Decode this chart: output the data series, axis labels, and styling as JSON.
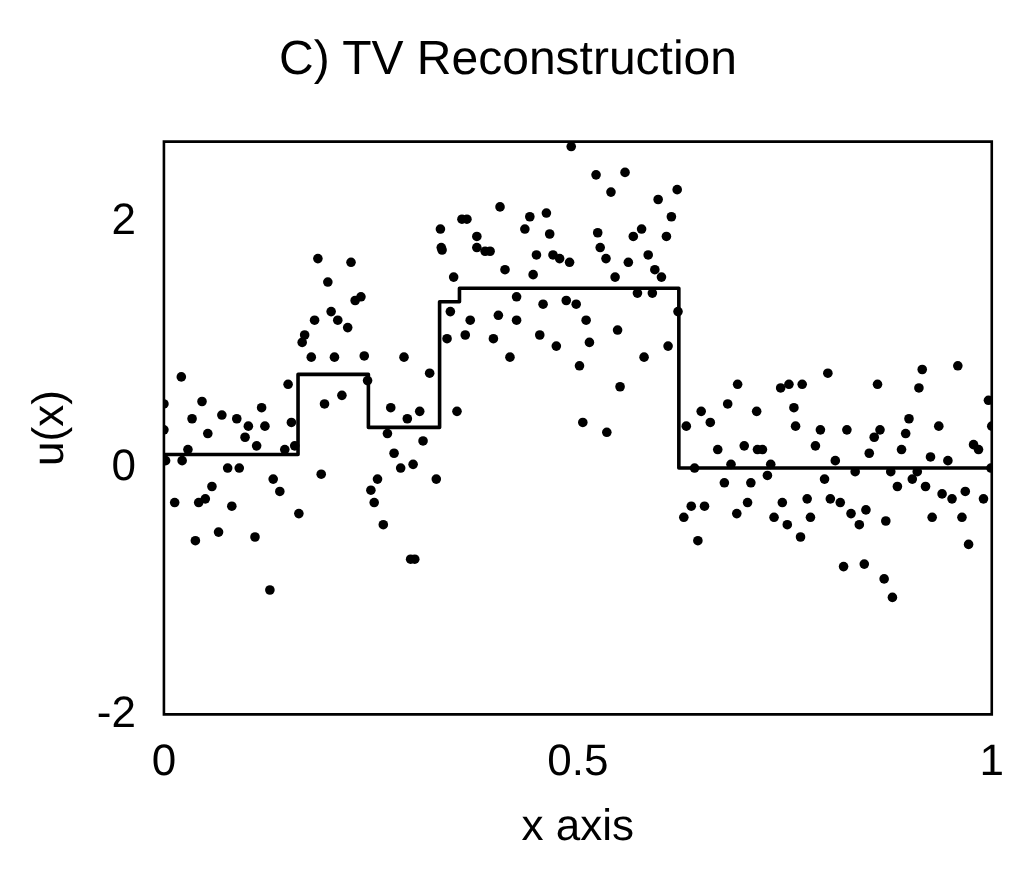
{
  "chart_data": {
    "type": "scatter",
    "title": "C) TV Reconstruction",
    "xlabel": "x axis",
    "ylabel": "u(x)",
    "xlim": [
      0,
      1
    ],
    "xticks": [
      0,
      0.5,
      1
    ],
    "ylim": [
      -2,
      2.65
    ],
    "yticks": [
      -2,
      0,
      2
    ],
    "grid": false,
    "legend": false,
    "marker": "circle",
    "series": [
      {
        "color": "#000000",
        "x": [
          0.0,
          0.0,
          0.002,
          0.013,
          0.021,
          0.022,
          0.029,
          0.034,
          0.038,
          0.042,
          0.046,
          0.05,
          0.053,
          0.058,
          0.066,
          0.07,
          0.077,
          0.082,
          0.088,
          0.091,
          0.098,
          0.102,
          0.11,
          0.112,
          0.118,
          0.122,
          0.128,
          0.132,
          0.14,
          0.146,
          0.15,
          0.154,
          0.158,
          0.163,
          0.167,
          0.17,
          0.178,
          0.182,
          0.186,
          0.19,
          0.194,
          0.198,
          0.202,
          0.206,
          0.21,
          0.215,
          0.222,
          0.226,
          0.231,
          0.238,
          0.242,
          0.246,
          0.25,
          0.254,
          0.258,
          0.265,
          0.27,
          0.274,
          0.278,
          0.286,
          0.29,
          0.294,
          0.298,
          0.303,
          0.301,
          0.309,
          0.313,
          0.321,
          0.329,
          0.335,
          0.334,
          0.336,
          0.346,
          0.342,
          0.35,
          0.354,
          0.36,
          0.366,
          0.364,
          0.37,
          0.378,
          0.378,
          0.388,
          0.394,
          0.398,
          0.404,
          0.406,
          0.412,
          0.418,
          0.426,
          0.426,
          0.436,
          0.442,
          0.446,
          0.45,
          0.454,
          0.458,
          0.462,
          0.466,
          0.47,
          0.474,
          0.478,
          0.486,
          0.49,
          0.492,
          0.498,
          0.502,
          0.506,
          0.51,
          0.514,
          0.522,
          0.524,
          0.527,
          0.534,
          0.535,
          0.54,
          0.545,
          0.548,
          0.551,
          0.557,
          0.561,
          0.567,
          0.572,
          0.577,
          0.58,
          0.585,
          0.59,
          0.593,
          0.597,
          0.601,
          0.607,
          0.609,
          0.613,
          0.62,
          0.621,
          0.628,
          0.631,
          0.637,
          0.641,
          0.645,
          0.649,
          0.653,
          0.66,
          0.669,
          0.677,
          0.681,
          0.685,
          0.692,
          0.693,
          0.701,
          0.705,
          0.709,
          0.716,
          0.717,
          0.723,
          0.729,
          0.733,
          0.737,
          0.745,
          0.747,
          0.753,
          0.755,
          0.761,
          0.763,
          0.769,
          0.771,
          0.777,
          0.781,
          0.787,
          0.793,
          0.798,
          0.802,
          0.805,
          0.811,
          0.817,
          0.821,
          0.825,
          0.83,
          0.835,
          0.84,
          0.846,
          0.848,
          0.852,
          0.858,
          0.862,
          0.865,
          0.87,
          0.872,
          0.878,
          0.88,
          0.886,
          0.891,
          0.896,
          0.9,
          0.904,
          0.91,
          0.912,
          0.916,
          0.92,
          0.926,
          0.928,
          0.936,
          0.94,
          0.947,
          0.952,
          0.959,
          0.964,
          0.968,
          0.972,
          0.978,
          0.984,
          0.99,
          0.996,
          0.999,
          1.0
        ],
        "values": [
          0.52,
          0.31,
          0.06,
          -0.28,
          0.74,
          0.06,
          0.15,
          0.4,
          -0.59,
          -0.28,
          0.54,
          -0.25,
          0.28,
          -0.15,
          -0.52,
          0.43,
          0.0,
          -0.31,
          0.4,
          0.0,
          0.25,
          0.34,
          -0.56,
          0.18,
          0.49,
          0.34,
          -0.99,
          -0.09,
          -0.19,
          0.15,
          0.68,
          0.37,
          0.18,
          -0.37,
          1.02,
          1.08,
          0.9,
          1.2,
          1.7,
          -0.05,
          0.52,
          1.51,
          1.27,
          0.9,
          1.2,
          0.59,
          1.14,
          1.67,
          1.36,
          1.39,
          0.91,
          0.71,
          -0.18,
          -0.28,
          -0.09,
          -0.46,
          0.28,
          0.49,
          0.12,
          0.0,
          0.9,
          0.4,
          -0.74,
          -0.74,
          0.03,
          0.46,
          0.22,
          0.77,
          -0.09,
          1.79,
          1.94,
          1.77,
          1.27,
          1.05,
          1.55,
          0.46,
          2.02,
          2.02,
          1.08,
          1.2,
          1.88,
          1.79,
          1.76,
          1.76,
          1.05,
          1.24,
          2.12,
          1.61,
          0.9,
          1.39,
          1.2,
          1.94,
          2.04,
          1.57,
          1.73,
          1.08,
          1.33,
          2.07,
          1.9,
          1.73,
          0.99,
          1.7,
          1.36,
          1.67,
          2.61,
          1.33,
          0.83,
          0.37,
          1.2,
          1.02,
          2.38,
          1.91,
          1.79,
          1.7,
          0.29,
          2.24,
          1.55,
          1.12,
          0.66,
          2.4,
          1.67,
          1.88,
          1.42,
          1.94,
          0.9,
          1.73,
          1.42,
          1.61,
          2.18,
          1.55,
          1.88,
          0.99,
          2.04,
          2.26,
          1.27,
          -0.4,
          0.34,
          -0.31,
          0.0,
          -0.59,
          0.46,
          -0.31,
          0.37,
          0.15,
          -0.12,
          0.52,
          0.03,
          -0.37,
          0.68,
          0.18,
          -0.28,
          -0.12,
          0.46,
          0.15,
          0.15,
          -0.06,
          0.03,
          -0.4,
          0.65,
          -0.28,
          -0.46,
          0.68,
          0.49,
          0.34,
          -0.56,
          0.68,
          -0.25,
          -0.4,
          0.18,
          0.31,
          -0.09,
          0.77,
          -0.25,
          0.06,
          -0.28,
          -0.8,
          0.31,
          -0.37,
          -0.03,
          -0.46,
          -0.78,
          -0.34,
          0.12,
          0.25,
          0.68,
          0.31,
          -0.9,
          -0.43,
          -0.03,
          -1.05,
          -0.15,
          0.15,
          0.28,
          0.4,
          -0.09,
          -0.03,
          0.65,
          0.8,
          -0.15,
          0.09,
          -0.4,
          0.34,
          -0.21,
          0.06,
          -0.25,
          0.83,
          -0.4,
          -0.19,
          -0.62,
          0.19,
          0.15,
          -0.25,
          0.55,
          0.0,
          0.34
        ]
      },
      {
        "type": "line",
        "color": "#000000",
        "marker": "none",
        "line_style": "solid",
        "x": [
          0,
          0.162,
          0.162,
          0.247,
          0.247,
          0.333,
          0.333,
          0.357,
          0.357,
          0.622,
          0.622,
          1
        ],
        "values": [
          0.11,
          0.11,
          0.76,
          0.76,
          0.33,
          0.33,
          1.35,
          1.35,
          1.46,
          1.46,
          0.0,
          0.0
        ]
      }
    ]
  }
}
